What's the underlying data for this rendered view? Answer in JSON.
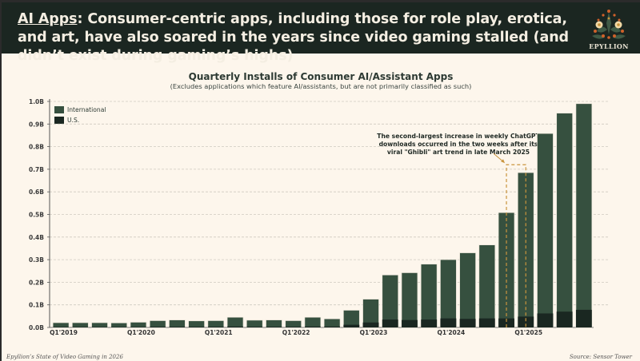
{
  "header": {
    "headline_highlight": "AI Apps",
    "headline_rest": ": Consumer-centric apps, including those for role play, erotica, and art, have also soared in the years since video gaming stalled (and didn’t exist during gaming’s highs)",
    "logo_text": "EPYLLION"
  },
  "footer": {
    "left": "Epyllion’s State of Video Gaming in 2026",
    "right": "Source: Sensor Tower"
  },
  "colors": {
    "header_bg": "#1b2621",
    "page_bg": "#fdf6ec",
    "international": "#36503f",
    "us": "#1a2721",
    "annotation": "#c9943d"
  },
  "chart_data": {
    "type": "bar",
    "stacked": true,
    "title": "Quarterly Installs of Consumer AI/Assistant Apps",
    "subtitle": "(Excludes applications which feature AI/assistants, but are not primarily classified as such)",
    "xlabel": "",
    "ylabel": "",
    "ylim": [
      0,
      1.0
    ],
    "y_ticks": [
      "0.0B",
      "0.1B",
      "0.2B",
      "0.3B",
      "0.4B",
      "0.5B",
      "0.6B",
      "0.7B",
      "0.8B",
      "0.9B",
      "1.0B"
    ],
    "x_tick_labels": [
      "Q1'2019",
      "Q1'2020",
      "Q1'2021",
      "Q1'2022",
      "Q1'2023",
      "Q1'2024",
      "Q1'2025"
    ],
    "grid": "horizontal dashed",
    "legend_position": "top-left",
    "categories": [
      "Q1'2019",
      "Q2'2019",
      "Q3'2019",
      "Q4'2019",
      "Q1'2020",
      "Q2'2020",
      "Q3'2020",
      "Q4'2020",
      "Q1'2021",
      "Q2'2021",
      "Q3'2021",
      "Q4'2021",
      "Q1'2022",
      "Q2'2022",
      "Q3'2022",
      "Q4'2022",
      "Q1'2023",
      "Q2'2023",
      "Q3'2023",
      "Q4'2023",
      "Q1'2024",
      "Q2'2024",
      "Q3'2024",
      "Q4'2024",
      "Q1'2025",
      "Q2'2025",
      "Q3'2025",
      "Q4'2025"
    ],
    "series": [
      {
        "name": "U.S.",
        "values": [
          0.002,
          0.002,
          0.002,
          0.002,
          0.002,
          0.003,
          0.003,
          0.003,
          0.003,
          0.004,
          0.003,
          0.003,
          0.003,
          0.004,
          0.004,
          0.012,
          0.022,
          0.035,
          0.033,
          0.035,
          0.04,
          0.038,
          0.04,
          0.04,
          0.048,
          0.062,
          0.07,
          0.078
        ]
      },
      {
        "name": "International",
        "values": [
          0.019,
          0.019,
          0.019,
          0.018,
          0.021,
          0.027,
          0.03,
          0.026,
          0.027,
          0.041,
          0.029,
          0.03,
          0.027,
          0.041,
          0.034,
          0.064,
          0.103,
          0.197,
          0.209,
          0.245,
          0.26,
          0.292,
          0.325,
          0.468,
          0.637,
          0.796,
          0.878,
          0.912
        ]
      }
    ],
    "totals": [
      0.021,
      0.021,
      0.021,
      0.02,
      0.023,
      0.03,
      0.033,
      0.029,
      0.03,
      0.045,
      0.032,
      0.033,
      0.03,
      0.045,
      0.038,
      0.076,
      0.125,
      0.232,
      0.242,
      0.28,
      0.3,
      0.33,
      0.365,
      0.508,
      0.685,
      0.858,
      0.948,
      0.99
    ],
    "annotation": {
      "text": "The second-largest increase in weekly ChatGPT downloads occurred in the two weeks after its viral \"Ghibli\" art trend in late March 2025",
      "highlight_range": [
        "Q4'2024",
        "Q1'2025"
      ]
    }
  }
}
